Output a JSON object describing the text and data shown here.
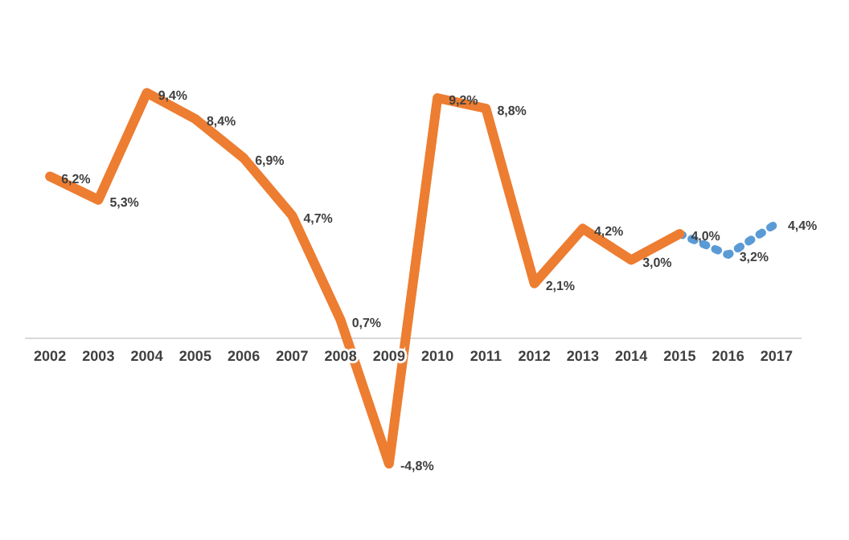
{
  "chart_data": {
    "type": "line",
    "categories": [
      "2002",
      "2003",
      "2004",
      "2005",
      "2006",
      "2007",
      "2008",
      "2009",
      "2010",
      "2011",
      "2012",
      "2013",
      "2014",
      "2015",
      "2016",
      "2017"
    ],
    "series": [
      {
        "color": "#ed7d31",
        "line_style": "solid",
        "values": [
          6.2,
          5.3,
          9.4,
          8.4,
          6.9,
          4.7,
          0.7,
          -4.8,
          9.2,
          8.8,
          2.1,
          4.2,
          3.0,
          4.0,
          null,
          null
        ],
        "value_labels": [
          "6,2%",
          "5,3%",
          "9,4%",
          "8,4%",
          "6,9%",
          "4,7%",
          "0,7%",
          "-4,8%",
          "9,2%",
          "8,8%",
          "2,1%",
          "4,2%",
          "3,0%",
          "4,0%",
          null,
          null
        ]
      },
      {
        "color": "#5b9bd5",
        "line_style": "dotted",
        "values": [
          null,
          null,
          null,
          null,
          null,
          null,
          null,
          null,
          null,
          null,
          null,
          null,
          null,
          4.0,
          3.2,
          4.4
        ],
        "value_labels": [
          null,
          null,
          null,
          null,
          null,
          null,
          null,
          null,
          null,
          null,
          null,
          null,
          null,
          null,
          "3,2%",
          "4,4%"
        ]
      }
    ],
    "grid": false,
    "legend": false,
    "marker": "none"
  }
}
